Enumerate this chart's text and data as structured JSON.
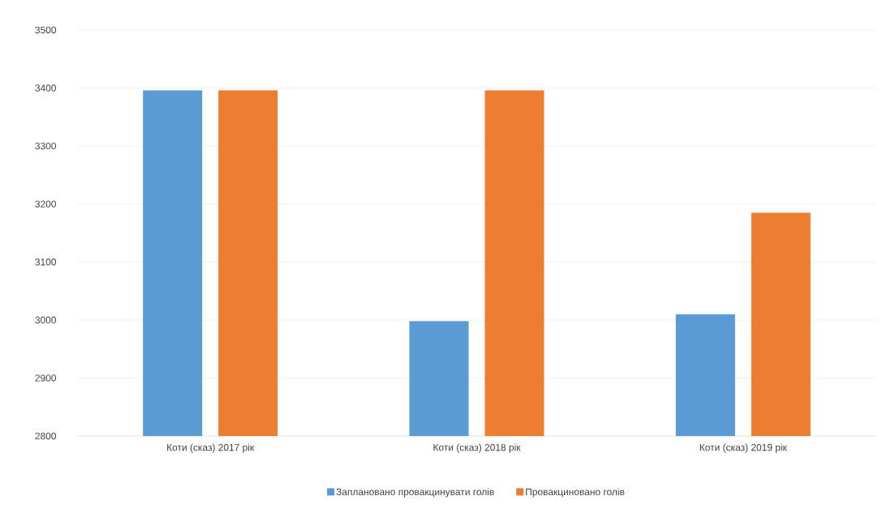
{
  "chart_data": {
    "type": "bar",
    "categories": [
      "Коти (сказ) 2017 рік",
      "Коти (сказ) 2018 рік",
      "Коти (сказ) 2019 рік"
    ],
    "series": [
      {
        "name": "Заплановано провакцинувати голів",
        "color": "#5b9bd5",
        "values": [
          3396,
          2998,
          3010
        ]
      },
      {
        "name": "Провакциновано голів",
        "color": "#ed7d31",
        "values": [
          3396,
          3396,
          3185
        ]
      }
    ],
    "ylim": [
      2800,
      3500
    ],
    "yticks": [
      2800,
      2900,
      3000,
      3100,
      3200,
      3300,
      3400,
      3500
    ],
    "grid": "y",
    "legend": "bottom"
  }
}
